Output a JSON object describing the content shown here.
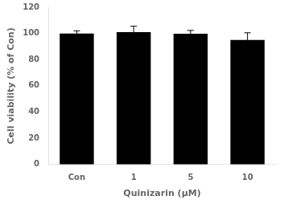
{
  "chart_data": {
    "type": "bar",
    "categories": [
      "Con",
      "1",
      "5",
      "10"
    ],
    "values": [
      100.0,
      101.0,
      99.8,
      95.0
    ],
    "errors": [
      2.0,
      4.5,
      2.5,
      5.5
    ],
    "color": "#000000",
    "xlabel": "Quinizarin (μM)",
    "ylabel": "Cell viability (% of Con)",
    "ylim": [
      0,
      120
    ],
    "yticks": [
      0,
      20,
      40,
      60,
      80,
      100,
      120
    ],
    "grid": false
  }
}
